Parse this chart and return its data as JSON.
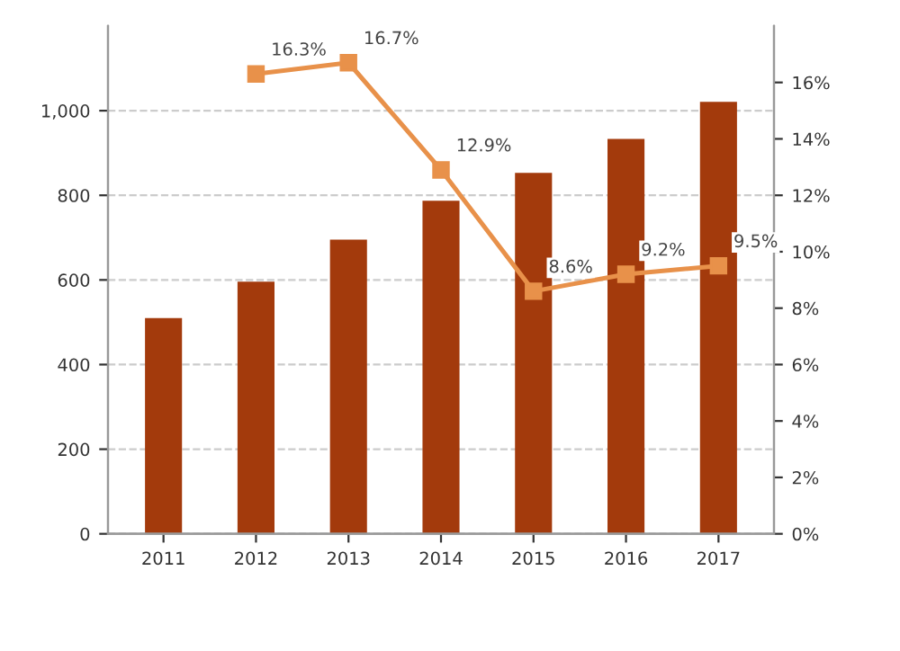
{
  "chart_data": {
    "type": "bar",
    "categories": [
      "2011",
      "2012",
      "2013",
      "2014",
      "2015",
      "2016",
      "2017"
    ],
    "series": [
      {
        "color": "#a33a0c",
        "values": [
          510,
          596,
          695,
          787,
          853,
          933,
          1021
        ]
      },
      {
        "type": "line",
        "axis": "y2",
        "color": "#e8914a",
        "marker": "square",
        "values": [
          null,
          16.3,
          16.7,
          12.9,
          8.6,
          9.2,
          9.5
        ],
        "value_labels": [
          null,
          "16.3%",
          "16.7%",
          "12.9%",
          "8.6%",
          "9.2%",
          "9.5%"
        ]
      }
    ],
    "ylim": [
      0,
      1200
    ],
    "yticks": [
      0,
      200,
      400,
      600,
      800,
      {
        "value": 1000,
        "label": "1,000"
      }
    ],
    "y2lim": [
      0,
      18
    ],
    "y2ticks": [
      {
        "value": 0,
        "label": "0%"
      },
      {
        "value": 2,
        "label": "2%"
      },
      {
        "value": 4,
        "label": "4%"
      },
      {
        "value": 6,
        "label": "6%"
      },
      {
        "value": 8,
        "label": "8%"
      },
      {
        "value": 10,
        "label": "10%"
      },
      {
        "value": 12,
        "label": "12%"
      },
      {
        "value": 14,
        "label": "14%"
      },
      {
        "value": 16,
        "label": "16%"
      }
    ],
    "grid": "y",
    "legend": false
  }
}
